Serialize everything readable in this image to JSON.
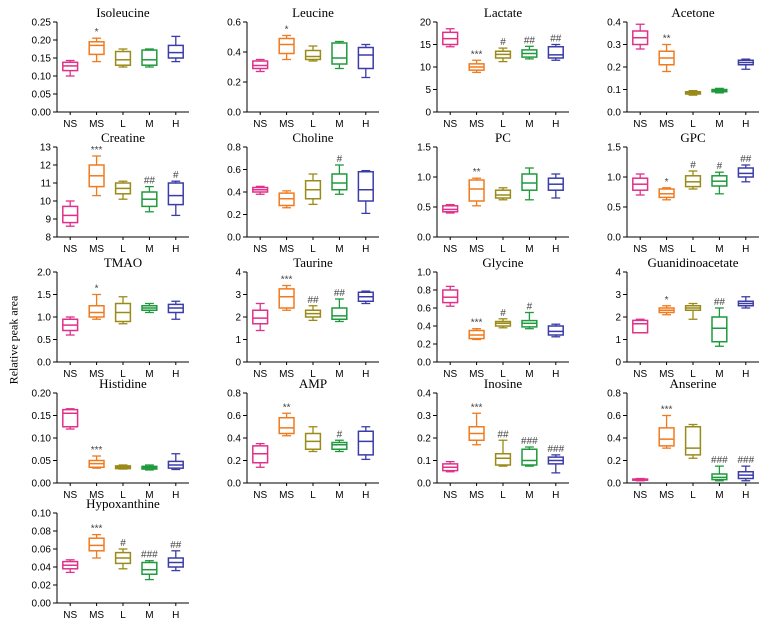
{
  "figure": {
    "ylabel": "Relative peak area",
    "categories": [
      "NS",
      "MS",
      "L",
      "M",
      "H"
    ],
    "colors": [
      "#e0308a",
      "#f07a1e",
      "#9a8a18",
      "#1e9a3c",
      "#3a3ca8"
    ]
  },
  "chart_data": [
    {
      "type": "box",
      "title": "Isoleucine",
      "ylim": [
        0,
        0.25
      ],
      "ticks": [
        0,
        0.05,
        0.1,
        0.15,
        0.2,
        0.25
      ],
      "decimals": 2,
      "categories": [
        "NS",
        "MS",
        "L",
        "M",
        "H"
      ],
      "boxes": [
        [
          0.1,
          0.115,
          0.128,
          0.138,
          0.143
        ],
        [
          0.14,
          0.16,
          0.185,
          0.195,
          0.205
        ],
        [
          0.125,
          0.13,
          0.145,
          0.168,
          0.175
        ],
        [
          0.125,
          0.13,
          0.145,
          0.172,
          0.175
        ],
        [
          0.14,
          0.15,
          0.165,
          0.185,
          0.21
        ]
      ],
      "annotations": [
        "",
        "*",
        "",
        "",
        ""
      ]
    },
    {
      "type": "box",
      "title": "Leucine",
      "ylim": [
        0,
        0.6
      ],
      "ticks": [
        0,
        0.2,
        0.4,
        0.6
      ],
      "decimals": 1,
      "categories": [
        "NS",
        "MS",
        "L",
        "M",
        "H"
      ],
      "boxes": [
        [
          0.27,
          0.29,
          0.31,
          0.34,
          0.35
        ],
        [
          0.35,
          0.39,
          0.45,
          0.49,
          0.51
        ],
        [
          0.34,
          0.35,
          0.37,
          0.41,
          0.44
        ],
        [
          0.29,
          0.32,
          0.36,
          0.46,
          0.47
        ],
        [
          0.23,
          0.29,
          0.38,
          0.43,
          0.45
        ]
      ],
      "annotations": [
        "",
        "*",
        "",
        "",
        ""
      ]
    },
    {
      "type": "box",
      "title": "Lactate",
      "ylim": [
        0,
        20
      ],
      "ticks": [
        0,
        5,
        10,
        15,
        20
      ],
      "decimals": 0,
      "categories": [
        "NS",
        "MS",
        "L",
        "M",
        "H"
      ],
      "boxes": [
        [
          14.5,
          15.0,
          16.3,
          17.7,
          18.5
        ],
        [
          8.8,
          9.3,
          10.0,
          10.7,
          11.5
        ],
        [
          11.2,
          12.0,
          12.8,
          13.5,
          14.2
        ],
        [
          11.8,
          12.2,
          13.0,
          13.8,
          14.6
        ],
        [
          11.5,
          12.0,
          12.7,
          14.5,
          15.0
        ]
      ],
      "annotations": [
        "",
        "***",
        "#",
        "##",
        "##"
      ]
    },
    {
      "type": "box",
      "title": "Acetone",
      "ylim": [
        0,
        0.4
      ],
      "ticks": [
        0,
        0.1,
        0.2,
        0.3,
        0.4
      ],
      "decimals": 1,
      "categories": [
        "NS",
        "MS",
        "L",
        "M",
        "H"
      ],
      "boxes": [
        [
          0.28,
          0.3,
          0.33,
          0.36,
          0.39
        ],
        [
          0.18,
          0.21,
          0.24,
          0.27,
          0.3
        ],
        [
          0.075,
          0.08,
          0.085,
          0.09,
          0.095
        ],
        [
          0.085,
          0.09,
          0.095,
          0.1,
          0.105
        ],
        [
          0.19,
          0.21,
          0.22,
          0.23,
          0.235
        ]
      ],
      "annotations": [
        "",
        "**",
        "",
        "",
        ""
      ]
    },
    {
      "type": "box",
      "title": "Creatine",
      "ylim": [
        8,
        13
      ],
      "ticks": [
        8,
        9,
        10,
        11,
        12,
        13
      ],
      "decimals": 0,
      "categories": [
        "NS",
        "MS",
        "L",
        "M",
        "H"
      ],
      "boxes": [
        [
          8.6,
          8.8,
          9.2,
          9.7,
          10.0
        ],
        [
          10.3,
          10.8,
          11.4,
          12.0,
          12.5
        ],
        [
          10.1,
          10.4,
          10.7,
          11.0,
          11.1
        ],
        [
          9.4,
          9.7,
          10.1,
          10.5,
          10.8
        ],
        [
          9.2,
          9.8,
          10.3,
          11.0,
          11.1
        ]
      ],
      "annotations": [
        "",
        "***",
        "",
        "##",
        "#"
      ]
    },
    {
      "type": "box",
      "title": "Choline",
      "ylim": [
        0,
        0.8
      ],
      "ticks": [
        0,
        0.2,
        0.4,
        0.6,
        0.8
      ],
      "decimals": 1,
      "categories": [
        "NS",
        "MS",
        "L",
        "M",
        "H"
      ],
      "boxes": [
        [
          0.38,
          0.4,
          0.42,
          0.44,
          0.45
        ],
        [
          0.26,
          0.28,
          0.34,
          0.39,
          0.41
        ],
        [
          0.29,
          0.34,
          0.42,
          0.5,
          0.56
        ],
        [
          0.38,
          0.42,
          0.48,
          0.56,
          0.64
        ],
        [
          0.21,
          0.32,
          0.42,
          0.58,
          0.59
        ]
      ],
      "annotations": [
        "",
        "",
        "",
        "#",
        ""
      ]
    },
    {
      "type": "box",
      "title": "PC",
      "ylim": [
        0,
        1.5
      ],
      "ticks": [
        0,
        0.5,
        1.0,
        1.5
      ],
      "decimals": 1,
      "categories": [
        "NS",
        "MS",
        "L",
        "M",
        "H"
      ],
      "boxes": [
        [
          0.4,
          0.42,
          0.46,
          0.52,
          0.54
        ],
        [
          0.52,
          0.6,
          0.8,
          0.95,
          0.98
        ],
        [
          0.62,
          0.65,
          0.7,
          0.78,
          0.82
        ],
        [
          0.62,
          0.78,
          0.9,
          1.05,
          1.15
        ],
        [
          0.65,
          0.78,
          0.88,
          0.98,
          1.05
        ]
      ],
      "annotations": [
        "",
        "**",
        "",
        "",
        ""
      ]
    },
    {
      "type": "box",
      "title": "GPC",
      "ylim": [
        0,
        1.5
      ],
      "ticks": [
        0,
        0.5,
        1.0,
        1.5
      ],
      "decimals": 1,
      "categories": [
        "NS",
        "MS",
        "L",
        "M",
        "H"
      ],
      "boxes": [
        [
          0.7,
          0.78,
          0.88,
          0.98,
          1.05
        ],
        [
          0.62,
          0.66,
          0.72,
          0.8,
          0.82
        ],
        [
          0.8,
          0.84,
          0.92,
          1.02,
          1.1
        ],
        [
          0.72,
          0.85,
          0.93,
          1.02,
          1.08
        ],
        [
          0.92,
          1.0,
          1.06,
          1.15,
          1.2
        ]
      ],
      "annotations": [
        "",
        "*",
        "#",
        "#",
        "##"
      ]
    },
    {
      "type": "box",
      "title": "TMAO",
      "ylim": [
        0,
        2.0
      ],
      "ticks": [
        0,
        0.5,
        1.0,
        1.5,
        2.0
      ],
      "decimals": 1,
      "categories": [
        "NS",
        "MS",
        "L",
        "M",
        "H"
      ],
      "boxes": [
        [
          0.6,
          0.7,
          0.82,
          0.95,
          1.0
        ],
        [
          0.95,
          1.0,
          1.1,
          1.25,
          1.5
        ],
        [
          0.85,
          0.9,
          1.1,
          1.3,
          1.45
        ],
        [
          1.1,
          1.15,
          1.2,
          1.25,
          1.3
        ],
        [
          0.95,
          1.1,
          1.2,
          1.28,
          1.35
        ]
      ],
      "annotations": [
        "",
        "*",
        "",
        "",
        ""
      ]
    },
    {
      "type": "box",
      "title": "Taurine",
      "ylim": [
        0,
        4
      ],
      "ticks": [
        0,
        1,
        2,
        3,
        4
      ],
      "decimals": 0,
      "categories": [
        "NS",
        "MS",
        "L",
        "M",
        "H"
      ],
      "boxes": [
        [
          1.4,
          1.7,
          1.95,
          2.3,
          2.6
        ],
        [
          2.3,
          2.4,
          2.9,
          3.25,
          3.4
        ],
        [
          1.85,
          2.0,
          2.15,
          2.3,
          2.5
        ],
        [
          1.8,
          1.9,
          2.05,
          2.4,
          2.8
        ],
        [
          2.6,
          2.7,
          2.9,
          3.1,
          3.15
        ]
      ],
      "annotations": [
        "",
        "***",
        "##",
        "##",
        ""
      ]
    },
    {
      "type": "box",
      "title": "Glycine",
      "ylim": [
        0,
        1.0
      ],
      "ticks": [
        0,
        0.2,
        0.4,
        0.6,
        0.8,
        1.0
      ],
      "decimals": 1,
      "categories": [
        "NS",
        "MS",
        "L",
        "M",
        "H"
      ],
      "boxes": [
        [
          0.62,
          0.66,
          0.72,
          0.8,
          0.84
        ],
        [
          0.25,
          0.26,
          0.3,
          0.35,
          0.37
        ],
        [
          0.38,
          0.4,
          0.43,
          0.45,
          0.48
        ],
        [
          0.37,
          0.39,
          0.43,
          0.46,
          0.55
        ],
        [
          0.28,
          0.3,
          0.34,
          0.4,
          0.42
        ]
      ],
      "annotations": [
        "",
        "***",
        "#",
        "#",
        ""
      ]
    },
    {
      "type": "box",
      "title": "Guanidinoacetate",
      "ylim": [
        0,
        4
      ],
      "ticks": [
        0,
        1,
        2,
        3,
        4
      ],
      "decimals": 0,
      "categories": [
        "NS",
        "MS",
        "L",
        "M",
        "H"
      ],
      "boxes": [
        [
          1.3,
          1.3,
          1.7,
          1.85,
          1.9
        ],
        [
          2.1,
          2.2,
          2.3,
          2.4,
          2.5
        ],
        [
          1.9,
          2.3,
          2.4,
          2.5,
          2.6
        ],
        [
          0.7,
          0.9,
          1.5,
          2.0,
          2.4
        ],
        [
          2.4,
          2.5,
          2.6,
          2.7,
          2.9
        ]
      ],
      "annotations": [
        "",
        "*",
        "",
        "##",
        ""
      ]
    },
    {
      "type": "box",
      "title": "Histidine",
      "ylim": [
        0,
        0.2
      ],
      "ticks": [
        0,
        0.05,
        0.1,
        0.15,
        0.2
      ],
      "decimals": 2,
      "categories": [
        "NS",
        "MS",
        "L",
        "M",
        "H"
      ],
      "boxes": [
        [
          0.12,
          0.125,
          0.155,
          0.163,
          0.165
        ],
        [
          0.033,
          0.035,
          0.043,
          0.05,
          0.06
        ],
        [
          0.031,
          0.032,
          0.035,
          0.038,
          0.04
        ],
        [
          0.029,
          0.031,
          0.034,
          0.037,
          0.04
        ],
        [
          0.03,
          0.033,
          0.04,
          0.048,
          0.065
        ]
      ],
      "annotations": [
        "",
        "***",
        "",
        "",
        ""
      ]
    },
    {
      "type": "box",
      "title": "AMP",
      "ylim": [
        0,
        0.8
      ],
      "ticks": [
        0,
        0.2,
        0.4,
        0.6,
        0.8
      ],
      "decimals": 1,
      "categories": [
        "NS",
        "MS",
        "L",
        "M",
        "H"
      ],
      "boxes": [
        [
          0.14,
          0.18,
          0.26,
          0.33,
          0.35
        ],
        [
          0.42,
          0.44,
          0.49,
          0.58,
          0.62
        ],
        [
          0.28,
          0.3,
          0.37,
          0.44,
          0.5
        ],
        [
          0.28,
          0.3,
          0.34,
          0.36,
          0.38
        ],
        [
          0.21,
          0.25,
          0.37,
          0.46,
          0.5
        ]
      ],
      "annotations": [
        "",
        "**",
        "",
        "#",
        ""
      ]
    },
    {
      "type": "box",
      "title": "Inosine",
      "ylim": [
        0,
        0.4
      ],
      "ticks": [
        0,
        0.1,
        0.2,
        0.3,
        0.4
      ],
      "decimals": 1,
      "categories": [
        "NS",
        "MS",
        "L",
        "M",
        "H"
      ],
      "boxes": [
        [
          0.05,
          0.055,
          0.07,
          0.085,
          0.095
        ],
        [
          0.17,
          0.19,
          0.22,
          0.25,
          0.31
        ],
        [
          0.075,
          0.08,
          0.11,
          0.13,
          0.19
        ],
        [
          0.075,
          0.08,
          0.1,
          0.15,
          0.16
        ],
        [
          0.045,
          0.085,
          0.1,
          0.115,
          0.125
        ]
      ],
      "annotations": [
        "",
        "***",
        "##",
        "###",
        "###"
      ]
    },
    {
      "type": "box",
      "title": "Anserine",
      "ylim": [
        0,
        0.8
      ],
      "ticks": [
        0,
        0.2,
        0.4,
        0.6,
        0.8
      ],
      "decimals": 1,
      "categories": [
        "NS",
        "MS",
        "L",
        "M",
        "H"
      ],
      "boxes": [
        [
          0.02,
          0.025,
          0.03,
          0.035,
          0.04
        ],
        [
          0.31,
          0.33,
          0.39,
          0.49,
          0.6
        ],
        [
          0.22,
          0.25,
          0.31,
          0.5,
          0.52
        ],
        [
          0.02,
          0.03,
          0.05,
          0.08,
          0.15
        ],
        [
          0.02,
          0.04,
          0.07,
          0.1,
          0.15
        ]
      ],
      "annotations": [
        "",
        "***",
        "",
        "###",
        "###"
      ]
    },
    {
      "type": "box",
      "title": "Hypoxanthine",
      "ylim": [
        0,
        0.1
      ],
      "ticks": [
        0,
        0.02,
        0.04,
        0.06,
        0.08,
        0.1
      ],
      "decimals": 2,
      "categories": [
        "NS",
        "MS",
        "L",
        "M",
        "H"
      ],
      "boxes": [
        [
          0.034,
          0.038,
          0.042,
          0.046,
          0.048
        ],
        [
          0.05,
          0.058,
          0.064,
          0.072,
          0.076
        ],
        [
          0.038,
          0.044,
          0.05,
          0.056,
          0.06
        ],
        [
          0.026,
          0.032,
          0.037,
          0.045,
          0.047
        ],
        [
          0.036,
          0.04,
          0.045,
          0.05,
          0.058
        ]
      ],
      "annotations": [
        "",
        "***",
        "#",
        "###",
        "##"
      ]
    }
  ]
}
